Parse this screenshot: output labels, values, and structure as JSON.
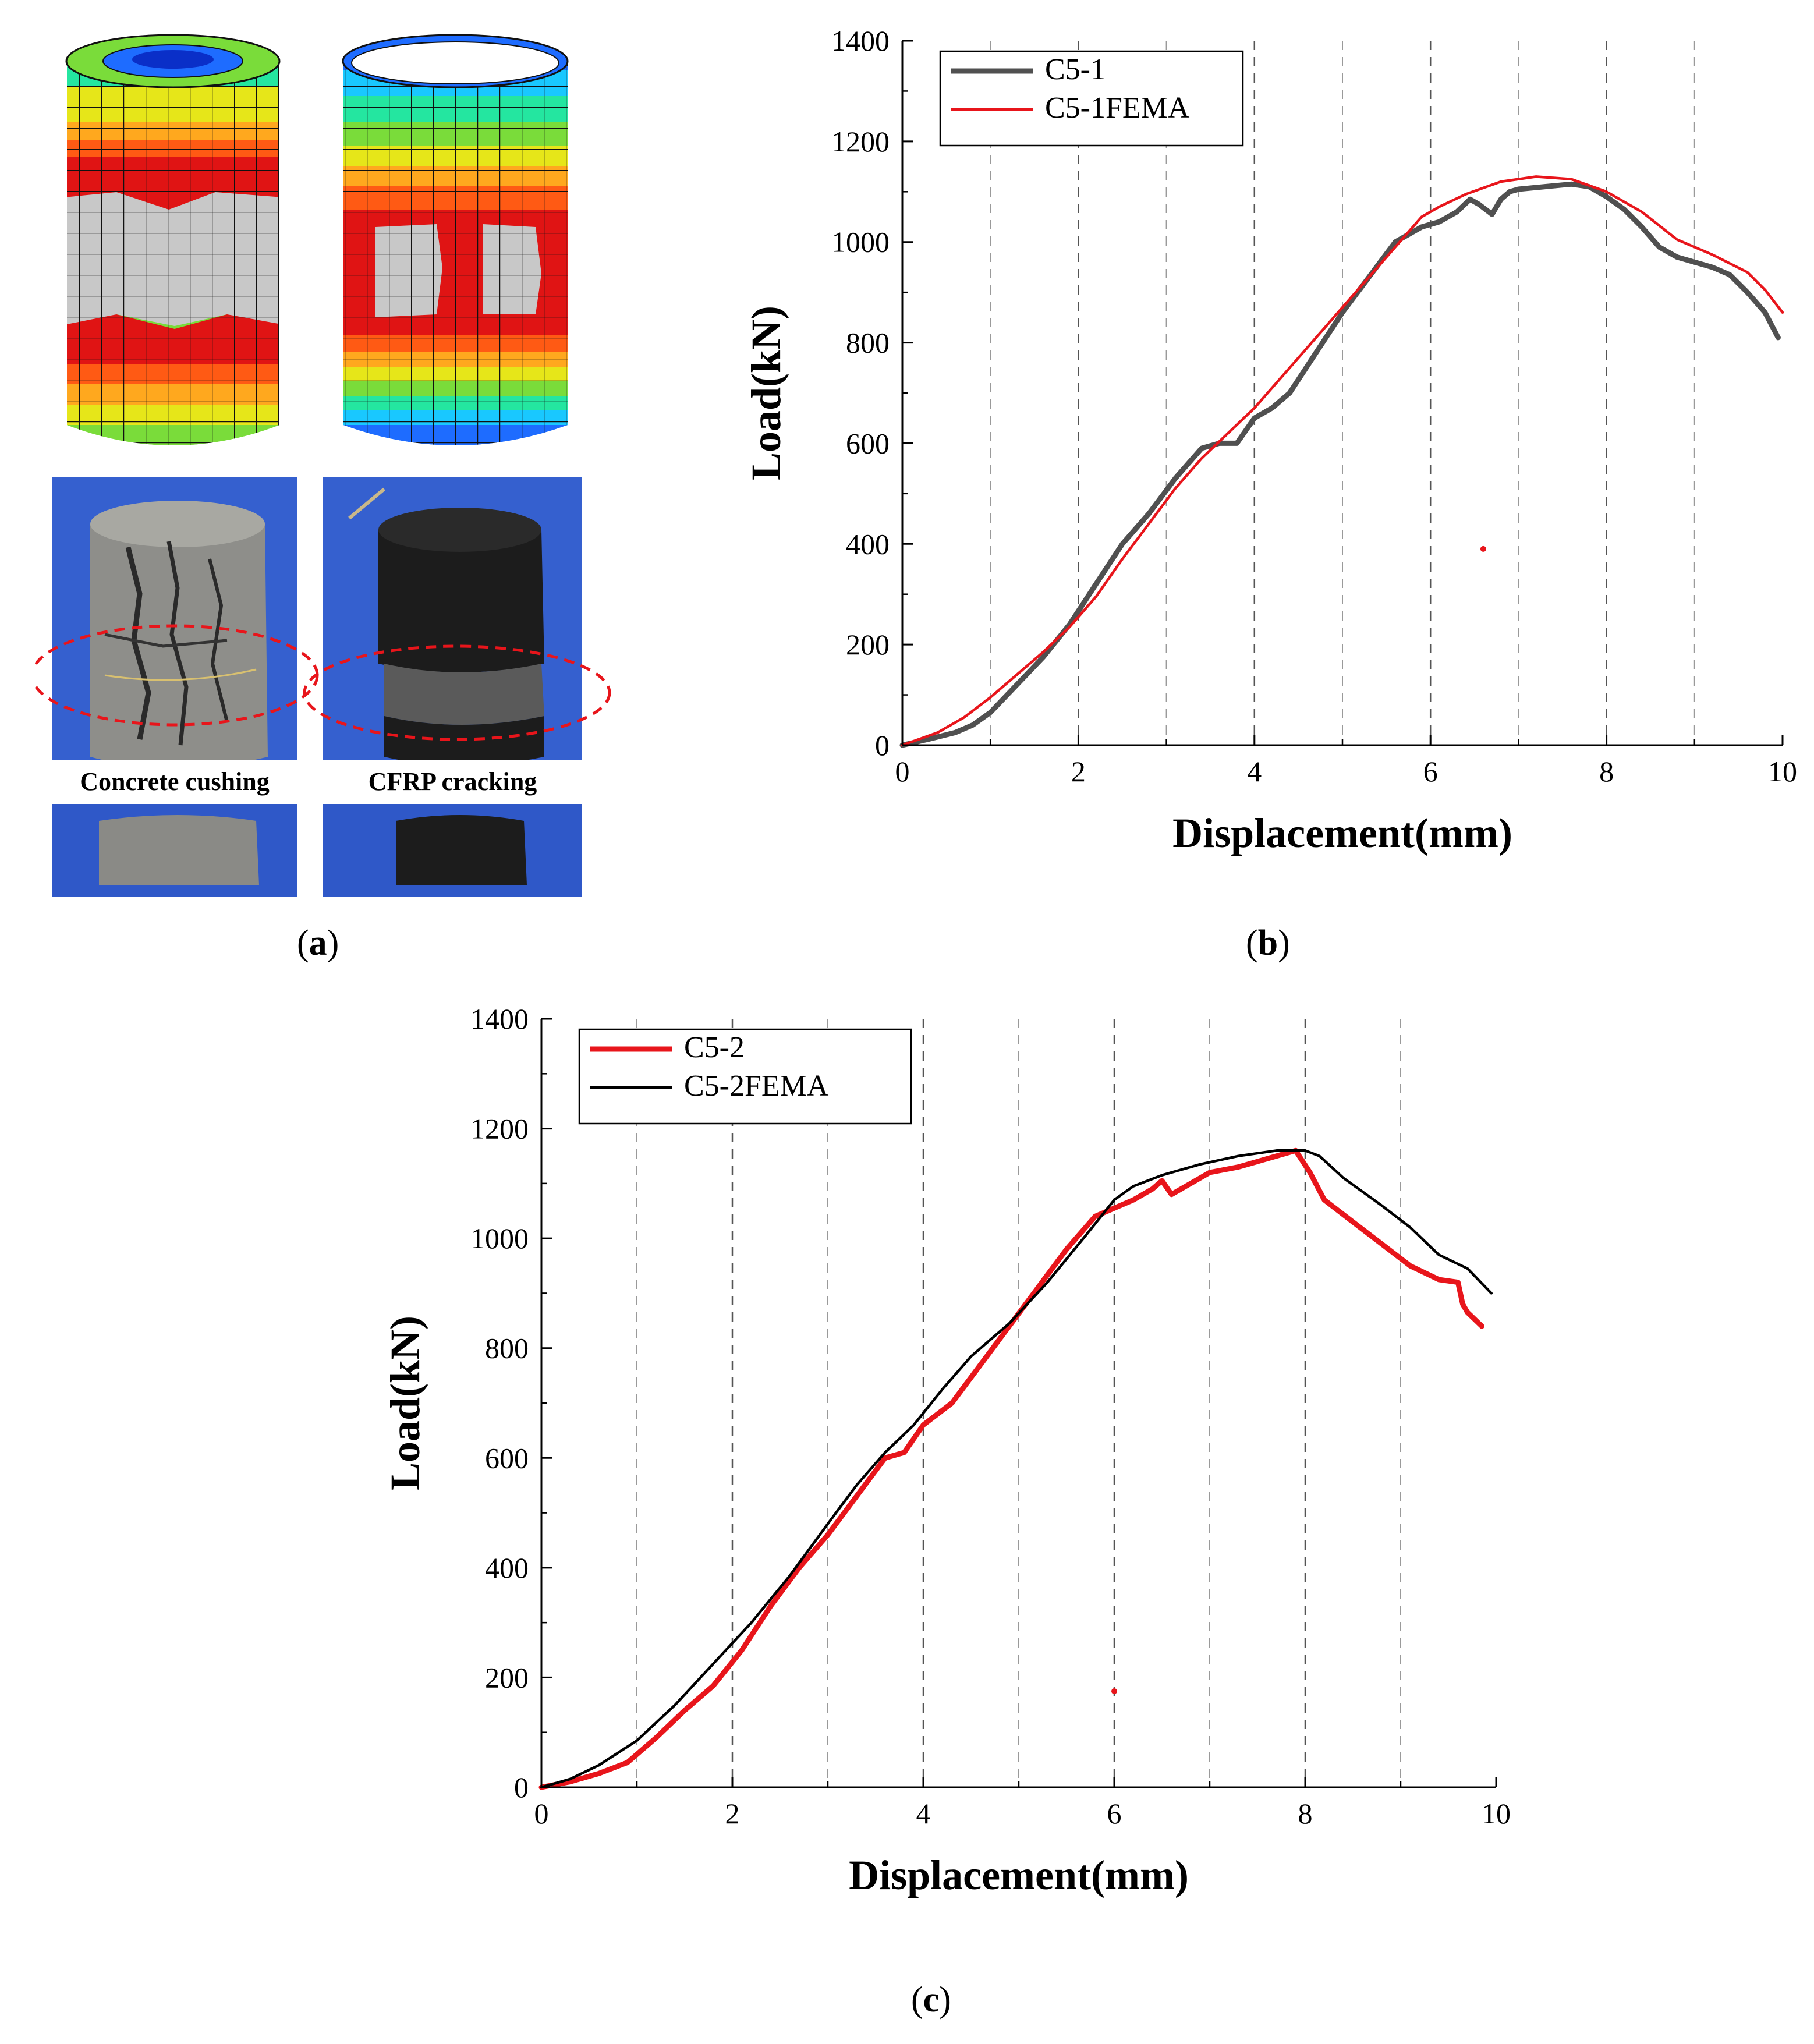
{
  "panel_a": {
    "label": "a",
    "captions": [
      "Concrete cushing",
      "CFRP cracking"
    ],
    "fem_colors": [
      "#0a2fc8",
      "#1e6cff",
      "#19c8ff",
      "#24e6a0",
      "#7adc3a",
      "#e6e619",
      "#ffa81e",
      "#ff5a14",
      "#e01414",
      "#c8c8c8"
    ]
  },
  "panel_b": {
    "label": "b"
  },
  "panel_c": {
    "label": "c"
  },
  "chart_data": [
    {
      "type": "line",
      "xlabel": "Displacement(mm)",
      "ylabel": "Load(kN)",
      "xlim": [
        0,
        10
      ],
      "ylim": [
        0,
        1400
      ],
      "xticks": [
        0,
        2,
        4,
        6,
        8,
        10
      ],
      "yticks": [
        0,
        200,
        400,
        600,
        800,
        1000,
        1200,
        1400
      ],
      "grid": "vertical dashed at every 1 mm",
      "legend_position": "top-left",
      "series": [
        {
          "name": "C5-1",
          "color": "#505050",
          "width": "thick",
          "x": [
            0,
            0.3,
            0.6,
            0.8,
            1.0,
            1.3,
            1.6,
            1.9,
            2.2,
            2.5,
            2.8,
            3.1,
            3.4,
            3.6,
            3.8,
            4.0,
            4.2,
            4.4,
            4.7,
            5.0,
            5.3,
            5.6,
            5.9,
            6.0,
            6.1,
            6.3,
            6.45,
            6.55,
            6.7,
            6.75,
            6.8,
            6.9,
            7.0,
            7.3,
            7.6,
            7.8,
            8.0,
            8.2,
            8.4,
            8.6,
            8.8,
            9.0,
            9.2,
            9.4,
            9.6,
            9.8,
            9.95
          ],
          "y": [
            0,
            12,
            25,
            40,
            65,
            120,
            175,
            240,
            320,
            400,
            460,
            530,
            590,
            600,
            600,
            650,
            670,
            700,
            780,
            860,
            930,
            1000,
            1030,
            1035,
            1040,
            1060,
            1085,
            1075,
            1055,
            1070,
            1085,
            1100,
            1105,
            1110,
            1115,
            1110,
            1090,
            1065,
            1030,
            990,
            970,
            960,
            950,
            935,
            900,
            860,
            810
          ]
        },
        {
          "name": "C5-1FEMA",
          "color": "#e8151b",
          "width": "thin",
          "x": [
            0,
            0.4,
            0.7,
            1.0,
            1.3,
            1.6,
            1.9,
            2.2,
            2.5,
            2.8,
            3.1,
            3.4,
            3.7,
            4.0,
            4.4,
            4.8,
            5.2,
            5.6,
            5.9,
            6.1,
            6.4,
            6.8,
            7.2,
            7.6,
            8.0,
            8.4,
            8.8,
            9.2,
            9.6,
            9.8,
            10.0
          ],
          "y": [
            0,
            25,
            55,
            95,
            140,
            185,
            235,
            295,
            370,
            440,
            510,
            570,
            620,
            670,
            750,
            830,
            910,
            990,
            1050,
            1070,
            1095,
            1120,
            1130,
            1125,
            1100,
            1060,
            1005,
            975,
            940,
            905,
            860
          ]
        }
      ],
      "annotations": [
        {
          "type": "stray-point",
          "x": 6.6,
          "y": 390,
          "color": "#e8151b"
        }
      ]
    },
    {
      "type": "line",
      "xlabel": "Displacement(mm)",
      "ylabel": "Load(kN)",
      "xlim": [
        0,
        10
      ],
      "ylim": [
        0,
        1400
      ],
      "xticks": [
        0,
        2,
        4,
        6,
        8,
        10
      ],
      "yticks": [
        0,
        200,
        400,
        600,
        800,
        1000,
        1200,
        1400
      ],
      "grid": "vertical dashed at every 1 mm",
      "legend_position": "top-left",
      "series": [
        {
          "name": "C5-2",
          "color": "#e8151b",
          "width": "thick",
          "x": [
            0,
            0.3,
            0.6,
            0.9,
            1.2,
            1.5,
            1.8,
            2.1,
            2.4,
            2.7,
            3.0,
            3.3,
            3.6,
            3.8,
            4.0,
            4.3,
            4.6,
            4.9,
            5.2,
            5.5,
            5.8,
            6.0,
            6.2,
            6.4,
            6.5,
            6.6,
            6.7,
            6.8,
            7.0,
            7.3,
            7.6,
            7.9,
            8.05,
            8.2,
            8.5,
            8.8,
            9.1,
            9.4,
            9.6,
            9.65,
            9.7,
            9.85
          ],
          "y": [
            0,
            10,
            25,
            45,
            90,
            140,
            185,
            250,
            330,
            400,
            460,
            530,
            600,
            610,
            660,
            700,
            770,
            840,
            910,
            980,
            1040,
            1055,
            1070,
            1090,
            1105,
            1080,
            1090,
            1100,
            1120,
            1130,
            1145,
            1160,
            1120,
            1070,
            1030,
            990,
            950,
            925,
            920,
            880,
            865,
            840
          ]
        },
        {
          "name": "C5-2FEMA",
          "color": "#000000",
          "width": "thin",
          "x": [
            0,
            0.3,
            0.6,
            1.0,
            1.4,
            1.8,
            2.2,
            2.6,
            3.0,
            3.3,
            3.6,
            3.9,
            4.2,
            4.5,
            4.9,
            5.3,
            5.7,
            6.0,
            6.2,
            6.5,
            6.9,
            7.3,
            7.7,
            8.0,
            8.15,
            8.4,
            8.8,
            9.1,
            9.4,
            9.7,
            9.95
          ],
          "y": [
            0,
            15,
            40,
            85,
            150,
            225,
            300,
            385,
            480,
            550,
            610,
            660,
            725,
            785,
            845,
            920,
            1005,
            1070,
            1095,
            1115,
            1135,
            1150,
            1160,
            1160,
            1150,
            1110,
            1060,
            1020,
            970,
            945,
            900
          ]
        }
      ],
      "annotations": [
        {
          "type": "stray-point",
          "x": 6.0,
          "y": 175,
          "color": "#e8151b"
        }
      ]
    }
  ]
}
